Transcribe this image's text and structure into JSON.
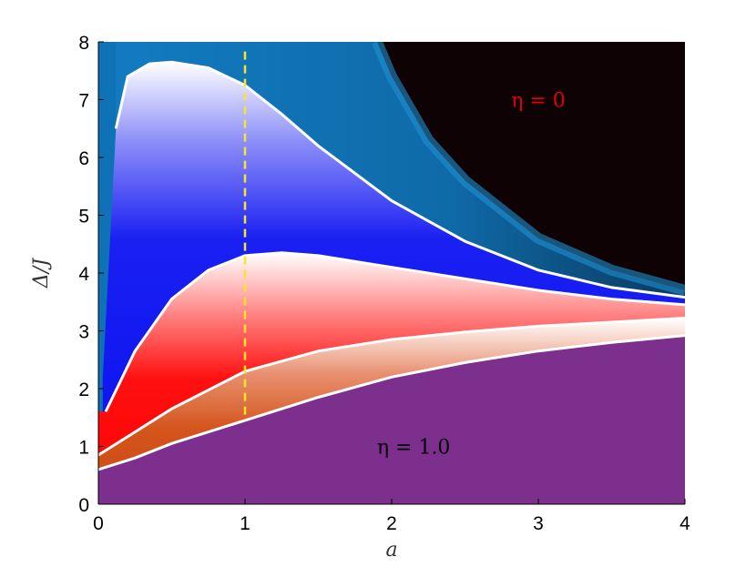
{
  "chart_data": {
    "type": "heatmap",
    "title": "",
    "xlabel": "a",
    "ylabel": "Δ/J",
    "xlim": [
      0,
      4
    ],
    "ylim": [
      0,
      8
    ],
    "xticks": [
      "0",
      "1",
      "2",
      "3",
      "4"
    ],
    "yticks": [
      "0",
      "1",
      "2",
      "3",
      "4",
      "5",
      "6",
      "7",
      "8"
    ],
    "grid": false,
    "colors": {
      "eta_one": "#7d2f8e",
      "orange_band": "#d4541b",
      "red_band": "#ff0c0c",
      "blue_band": "#0a10f0",
      "cyan_band": "#0f72b6",
      "eta_zero": "#0e0204",
      "marker": "#f5e62a"
    },
    "boundaries": [
      {
        "name": "eta_one_upper",
        "x": [
          0.0,
          0.25,
          0.5,
          1.0,
          1.5,
          2.0,
          2.5,
          3.0,
          3.5,
          4.0
        ],
        "y": [
          0.6,
          0.8,
          1.05,
          1.45,
          1.85,
          2.2,
          2.45,
          2.65,
          2.8,
          2.92
        ]
      },
      {
        "name": "orange_upper",
        "x": [
          0.0,
          0.25,
          0.5,
          1.0,
          1.5,
          2.0,
          2.5,
          3.0,
          3.5,
          4.0
        ],
        "y": [
          0.85,
          1.25,
          1.65,
          2.3,
          2.65,
          2.85,
          2.98,
          3.08,
          3.15,
          3.22
        ]
      },
      {
        "name": "red_upper",
        "x": [
          0.05,
          0.25,
          0.5,
          0.75,
          1.0,
          1.25,
          1.5,
          2.0,
          2.5,
          3.0,
          3.5,
          4.0
        ],
        "y": [
          1.6,
          2.65,
          3.55,
          4.05,
          4.3,
          4.35,
          4.3,
          4.1,
          3.9,
          3.7,
          3.55,
          3.45
        ]
      },
      {
        "name": "blue_upper",
        "x": [
          0.12,
          0.2,
          0.35,
          0.5,
          0.75,
          1.0,
          1.25,
          1.5,
          2.0,
          2.5,
          3.0,
          3.5,
          4.0
        ],
        "y": [
          6.5,
          7.4,
          7.62,
          7.65,
          7.55,
          7.25,
          6.75,
          6.2,
          5.25,
          4.55,
          4.05,
          3.75,
          3.58
        ]
      },
      {
        "name": "cyan_upper",
        "x": [
          1.9,
          2.0,
          2.25,
          2.5,
          3.0,
          3.5,
          4.0
        ],
        "y": [
          8.0,
          7.4,
          6.3,
          5.6,
          4.6,
          4.05,
          3.7
        ]
      }
    ],
    "marker_line": {
      "x": 1.0,
      "y_range": [
        1.55,
        7.9
      ],
      "style": "dashed"
    },
    "annotations": [
      {
        "text": "η = 0",
        "x": 3.0,
        "y": 7.0,
        "color": "#e00000"
      },
      {
        "text": "η = 1.0",
        "x": 2.15,
        "y": 1.0,
        "color": "#000000"
      }
    ]
  }
}
